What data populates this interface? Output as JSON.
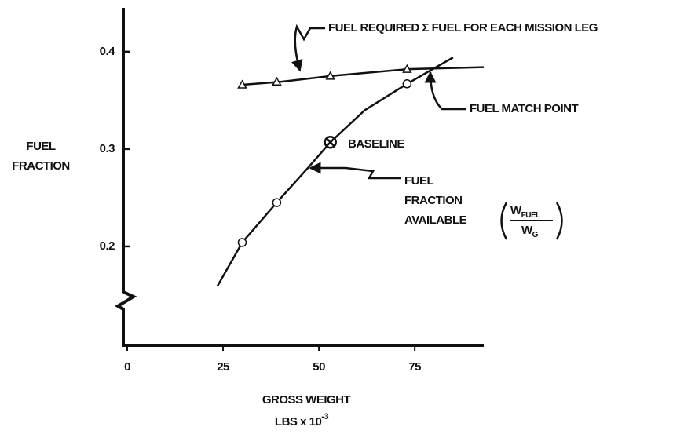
{
  "chart_data": {
    "type": "line",
    "y_label": [
      "FUEL",
      "FRACTION"
    ],
    "x_label": [
      "GROSS WEIGHT",
      "LBS x 10"
    ],
    "x_label_exponent": "-3",
    "xlim": [
      0,
      93
    ],
    "ylim": [
      0.1,
      0.445
    ],
    "xticks": [
      0,
      25,
      50,
      75
    ],
    "yticks": [
      0.2,
      0.3,
      0.4
    ],
    "series": [
      {
        "color": "#111111",
        "marker": "none",
        "x": [
          30,
          40,
          53,
          73,
          93
        ],
        "values": [
          0.366,
          0.369,
          0.375,
          0.382,
          0.384
        ]
      },
      {
        "color": "#111111",
        "marker": "triangle",
        "x": [
          30,
          39,
          53,
          73
        ],
        "values": [
          0.366,
          0.369,
          0.375,
          0.382
        ]
      },
      {
        "color": "#111111",
        "marker": "none",
        "x": [
          23.5,
          30,
          39,
          47,
          53,
          62,
          73,
          85
        ],
        "values": [
          0.159,
          0.204,
          0.245,
          0.28,
          0.307,
          0.34,
          0.367,
          0.394
        ]
      },
      {
        "color": "#111111",
        "marker": "circle",
        "x": [
          30,
          39,
          73
        ],
        "values": [
          0.204,
          0.245,
          0.367
        ]
      },
      {
        "color": "#111111",
        "marker": "crossed-circle",
        "x": [
          53
        ],
        "values": [
          0.307
        ]
      }
    ],
    "annotations": [
      "FUEL REQUIRED  Σ FUEL FOR EACH MISSION LEG",
      "FUEL MATCH POINT",
      "BASELINE",
      "FUEL",
      "FRACTION",
      "AVAILABLE"
    ],
    "formula": {
      "numerator": "W",
      "numerator_sub": "FUEL",
      "denominator": "W",
      "denominator_sub": "G"
    }
  }
}
